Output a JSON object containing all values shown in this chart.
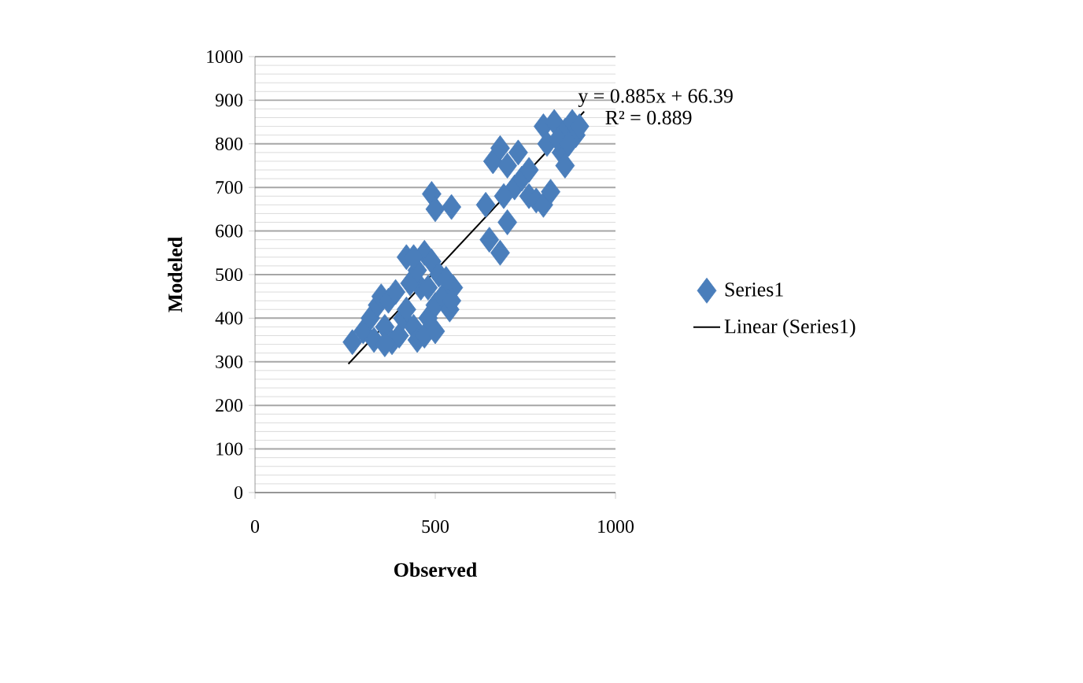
{
  "chart_data": {
    "type": "scatter",
    "xlabel": "Observed",
    "ylabel": "Modeled",
    "xlim": [
      0,
      1000
    ],
    "ylim": [
      0,
      1000
    ],
    "xticks": [
      0,
      500,
      1000
    ],
    "yticks": [
      0,
      100,
      200,
      300,
      400,
      500,
      600,
      700,
      800,
      900,
      1000
    ],
    "grid": "y",
    "legend": "right",
    "annotations": [
      "y = 0.885x + 66.39",
      "R² = 0.889"
    ],
    "series": [
      {
        "name": "Series1",
        "marker": "diamond",
        "color": "#4a7ebb",
        "x": [
          270,
          300,
          320,
          340,
          350,
          370,
          360,
          330,
          380,
          400,
          410,
          420,
          440,
          450,
          470,
          480,
          500,
          500,
          520,
          540,
          550,
          460,
          430,
          420,
          450,
          470,
          490,
          510,
          530,
          360,
          390,
          440,
          480,
          545,
          490,
          500,
          545,
          640,
          660,
          680,
          700,
          720,
          740,
          760,
          690,
          700,
          650,
          680,
          730,
          760,
          780,
          800,
          820,
          800,
          830,
          860,
          880,
          890,
          850,
          860,
          810,
          840,
          900,
          870
        ],
        "values": [
          345,
          370,
          400,
          430,
          450,
          440,
          380,
          350,
          345,
          360,
          400,
          420,
          380,
          350,
          360,
          400,
          370,
          430,
          450,
          420,
          470,
          470,
          480,
          540,
          510,
          550,
          530,
          500,
          490,
          340,
          460,
          540,
          470,
          440,
          685,
          650,
          655,
          660,
          760,
          790,
          750,
          700,
          720,
          680,
          680,
          620,
          580,
          550,
          780,
          740,
          670,
          660,
          690,
          840,
          850,
          830,
          850,
          820,
          780,
          750,
          800,
          810,
          840,
          800
        ]
      },
      {
        "name": "Linear (Series1)",
        "type": "line",
        "marker": "none",
        "line_style": "solid",
        "color": "#000000",
        "x": [
          259,
          913
        ],
        "values": [
          295,
          874
        ]
      }
    ]
  }
}
